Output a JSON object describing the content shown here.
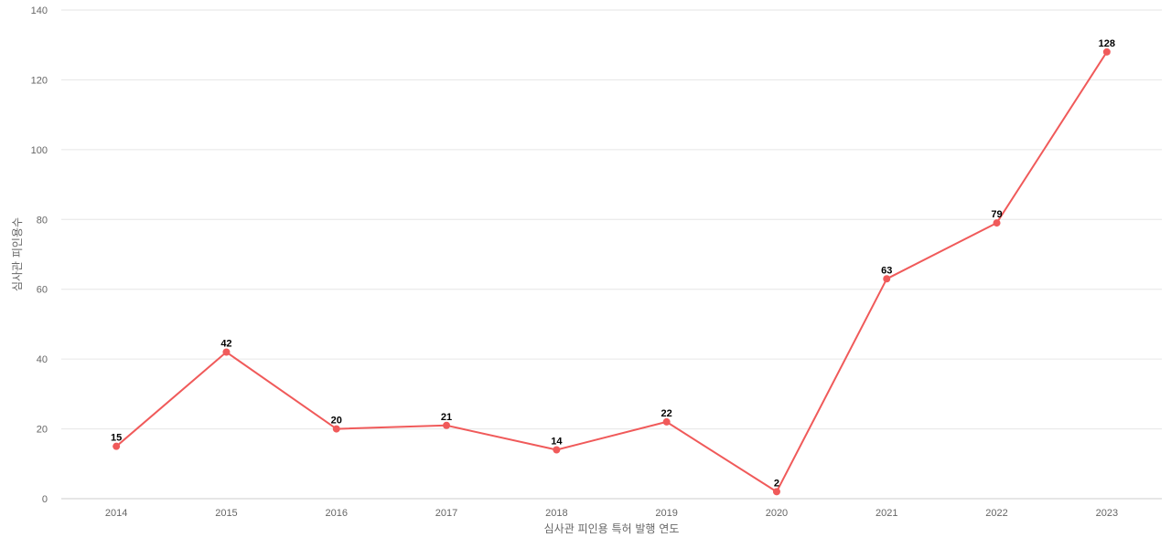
{
  "chart_data": {
    "type": "line",
    "categories": [
      "2014",
      "2015",
      "2016",
      "2017",
      "2018",
      "2019",
      "2020",
      "2021",
      "2022",
      "2023"
    ],
    "series": [
      {
        "values": [
          15,
          42,
          20,
          21,
          14,
          22,
          2,
          63,
          79,
          128
        ],
        "color": "#f05a5a"
      }
    ],
    "xlabel": "심사관 피인용 특허 발행 연도",
    "ylabel": "심사관 피인용수",
    "ylim": [
      0,
      140
    ],
    "yticks": [
      0,
      20,
      40,
      60,
      80,
      100,
      120,
      140
    ],
    "grid": true,
    "data_labels": true,
    "legend": "none"
  }
}
